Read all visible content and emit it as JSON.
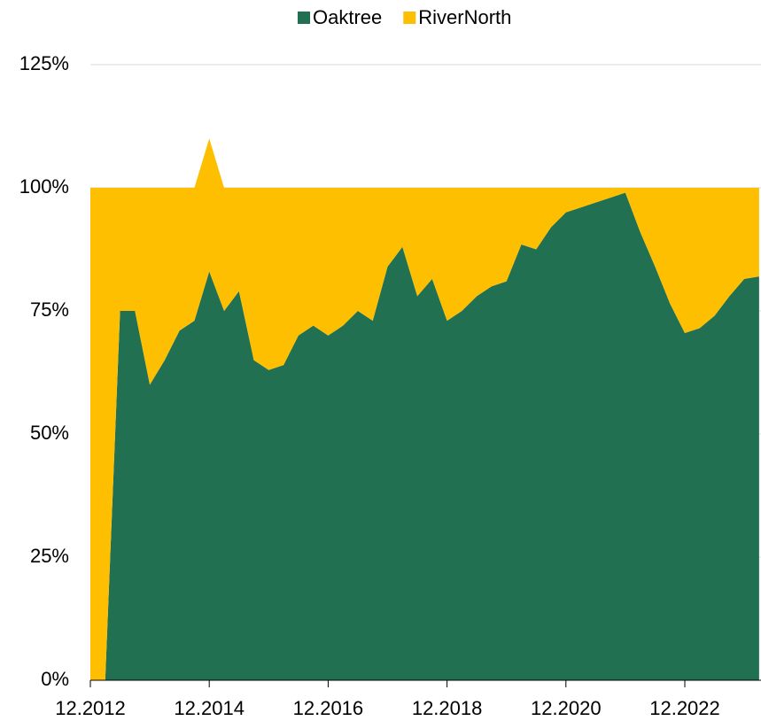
{
  "chart_data": {
    "type": "area",
    "stacked": true,
    "categories": [
      "12.2012",
      "03.2013",
      "06.2013",
      "09.2013",
      "12.2013",
      "03.2014",
      "06.2014",
      "09.2014",
      "12.2014",
      "03.2015",
      "06.2015",
      "09.2015",
      "12.2015",
      "03.2016",
      "06.2016",
      "09.2016",
      "12.2016",
      "03.2017",
      "06.2017",
      "09.2017",
      "12.2017",
      "03.2018",
      "06.2018",
      "09.2018",
      "12.2018",
      "03.2019",
      "06.2019",
      "09.2019",
      "12.2019",
      "03.2020",
      "06.2020",
      "09.2020",
      "12.2020",
      "03.2021",
      "06.2021",
      "09.2021",
      "12.2021",
      "03.2022",
      "06.2022",
      "09.2022",
      "12.2022",
      "03.2023",
      "06.2023",
      "09.2023",
      "12.2023",
      "03.2024"
    ],
    "series": [
      {
        "name": "Oaktree",
        "color": "#217052",
        "values": [
          0,
          0,
          75,
          75,
          60,
          65,
          71,
          73,
          83,
          75,
          79,
          65,
          63,
          64,
          70,
          72,
          70,
          72,
          75,
          73,
          84,
          88,
          78,
          81.5,
          73,
          75,
          78,
          80,
          81,
          88.5,
          87.5,
          92,
          95,
          96,
          97,
          98,
          99,
          91,
          84,
          76.5,
          70.5,
          71.5,
          74,
          78,
          81.5,
          82
        ]
      },
      {
        "name": "RiverNorth",
        "color": "#fdbf00",
        "values": [
          100,
          100,
          25,
          25,
          40,
          35,
          29,
          27,
          27,
          25,
          21,
          35,
          37,
          36,
          30,
          28,
          30,
          28,
          25,
          27,
          16,
          12,
          22,
          18.5,
          27,
          25,
          22,
          20,
          19,
          11.5,
          12.5,
          8,
          5,
          4,
          3,
          2,
          1,
          9,
          16,
          23.5,
          29.5,
          28.5,
          26,
          22,
          18.5,
          18
        ]
      }
    ],
    "xticks": [
      "12.2012",
      "12.2014",
      "12.2016",
      "12.2018",
      "12.2020",
      "12.2022"
    ],
    "ylim": [
      0,
      125
    ],
    "yticks": [
      {
        "value": 0,
        "label": "0%"
      },
      {
        "value": 25,
        "label": "25%"
      },
      {
        "value": 50,
        "label": "50%"
      },
      {
        "value": 75,
        "label": "75%"
      },
      {
        "value": 100,
        "label": "100%"
      },
      {
        "value": 125,
        "label": "125%"
      }
    ],
    "grid": true,
    "legend": "top"
  }
}
